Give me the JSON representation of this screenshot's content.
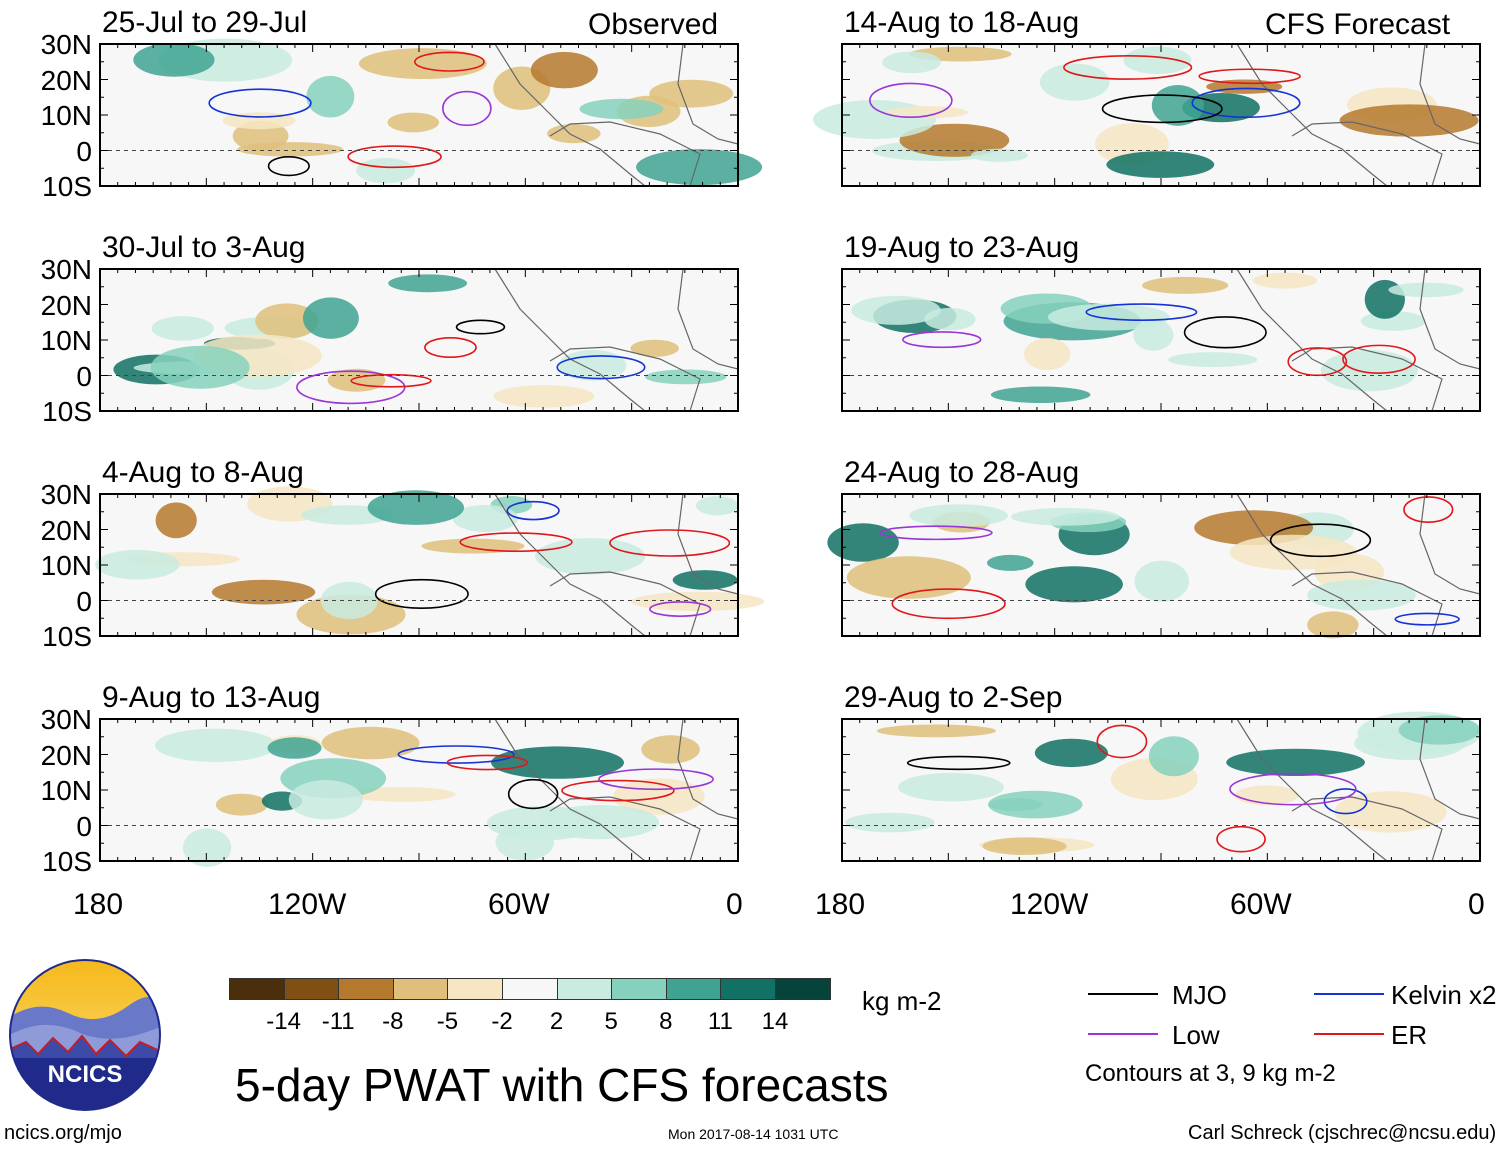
{
  "panels": [
    {
      "date_label": "25-Jul to 29-Jul",
      "tag": "Observed"
    },
    {
      "date_label": "14-Aug to 18-Aug",
      "tag": "CFS Forecast"
    },
    {
      "date_label": "30-Jul to 3-Aug",
      "tag": ""
    },
    {
      "date_label": "19-Aug to 23-Aug",
      "tag": ""
    },
    {
      "date_label": "4-Aug to 8-Aug",
      "tag": ""
    },
    {
      "date_label": "24-Aug to 28-Aug",
      "tag": ""
    },
    {
      "date_label": "9-Aug to 13-Aug",
      "tag": ""
    },
    {
      "date_label": "29-Aug to 2-Sep",
      "tag": ""
    }
  ],
  "lat_labels": [
    "30N",
    "20N",
    "10N",
    "0",
    "10S"
  ],
  "lon_labels": [
    "180",
    "120W",
    "60W",
    "0"
  ],
  "colorbar": {
    "colors": [
      "#4b2f0d",
      "#7f4f14",
      "#b5792d",
      "#dfbf7b",
      "#f6e6c3",
      "#f7f7f7",
      "#c9ebe0",
      "#86d1bd",
      "#3fa392",
      "#117164",
      "#05433b"
    ],
    "ticks": [
      "-14",
      "-11",
      "-8",
      "-5",
      "-2",
      "2",
      "5",
      "8",
      "11",
      "14"
    ],
    "units": "kg m-2"
  },
  "legend": {
    "items": [
      {
        "label": "MJO",
        "color": "#000000"
      },
      {
        "label": "Kelvin x2",
        "color": "#1432d6"
      },
      {
        "label": "Low",
        "color": "#9a36d6"
      },
      {
        "label": "ER",
        "color": "#e0171b"
      }
    ],
    "note": "Contours at 3, 9 kg m-2"
  },
  "title": "5-day PWAT with CFS forecasts",
  "logo": {
    "text": "NCICS"
  },
  "footer": {
    "website": "ncics.org/mjo",
    "timestamp": "Mon 2017-08-14 1031 UTC",
    "credit": "Carl Schreck (cjschrec@ncsu.edu)"
  }
}
